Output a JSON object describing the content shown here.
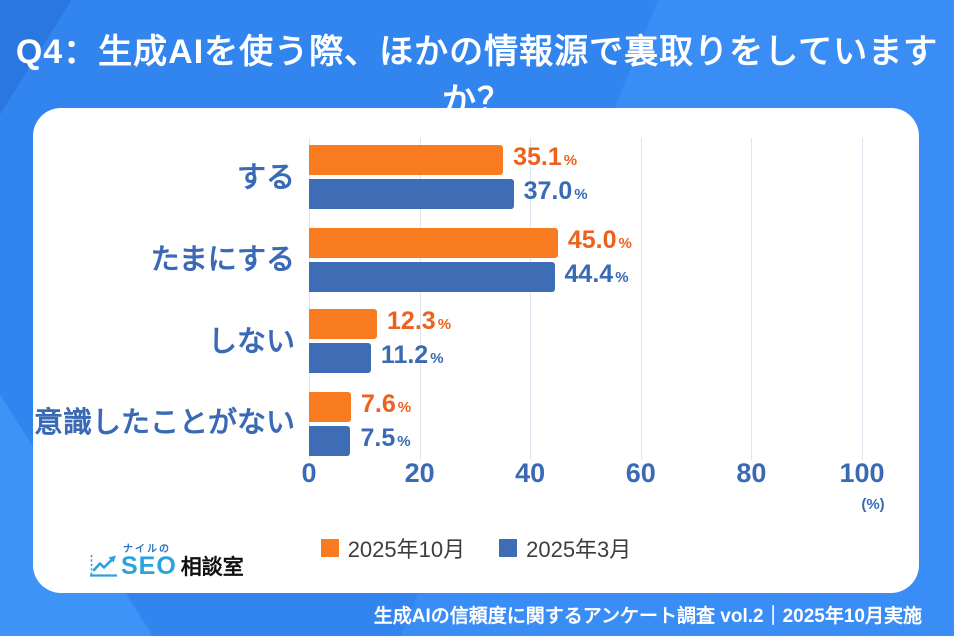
{
  "title": "Q4：生成AIを使う際、ほかの情報源で裏取りをしていますか？",
  "footer": "生成AIの信頼度に関するアンケート調査 vol.2｜2025年10月実施",
  "logo": {
    "top_text": "ナイルの",
    "main_text": "SEO",
    "suffix_text": "相談室",
    "icon": "trend-chart-icon"
  },
  "colors": {
    "background_blue": "#3285ef",
    "bar_orange": "#f87b1f",
    "bar_blue": "#3e6db5",
    "value_label_orange": "#ee611c",
    "value_label_blue": "#3a6ab3",
    "axis_text_blue": "#3a6ab5",
    "gridline": "#dde4f0",
    "legend_text": "#3d3d3d",
    "logo_light_blue": "#2aa2dc",
    "logo_dark_blue": "#3070c0"
  },
  "chart_data": {
    "type": "bar",
    "orientation": "horizontal",
    "title": "",
    "categories": [
      "する",
      "たまにする",
      "しない",
      "意識したことがない"
    ],
    "series": [
      {
        "name": "2025年10月",
        "color": "#f87b1f",
        "label_color": "#ee611c",
        "values": [
          35.1,
          45.0,
          12.3,
          7.6
        ]
      },
      {
        "name": "2025年3月",
        "color": "#3e6db5",
        "label_color": "#3a6ab3",
        "values": [
          37.0,
          44.4,
          11.2,
          7.5
        ]
      }
    ],
    "xlim": [
      0,
      100
    ],
    "xticks": [
      0,
      20,
      40,
      60,
      80,
      100
    ],
    "x_unit": "(%)",
    "grid": "vertical",
    "legend_position": "bottom",
    "value_label_format": "{value}%"
  }
}
